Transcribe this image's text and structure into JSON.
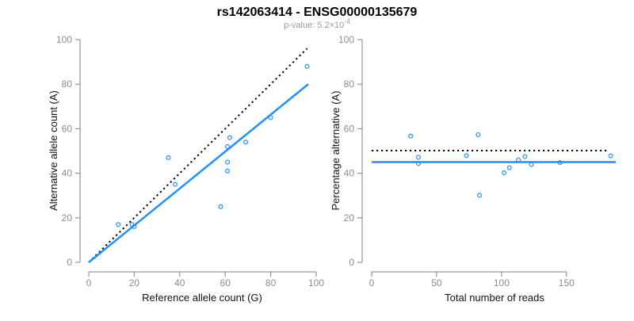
{
  "header": {
    "title": "rs142063414 - ENSG00000135679",
    "subtitle_prefix": "p-value: 5.2×10",
    "subtitle_exponent": "-4"
  },
  "colors": {
    "accent_blue": "#1E90FF",
    "line_black": "#000000",
    "axis_gray": "#7f7f7f",
    "tick_label_gray": "#8c8c8c",
    "axis_title_black": "#111111",
    "subtitle_gray": "#9a9a9a"
  },
  "chart_data": [
    {
      "type": "scatter",
      "title": "rs142063414 - ENSG00000135679",
      "subtitle": "p-value: 5.2×10^-4",
      "xlabel": "Reference allele count (G)",
      "ylabel": "Alternative allele count (A)",
      "xlim": [
        0,
        100
      ],
      "ylim": [
        0,
        100
      ],
      "xticks": [
        0,
        20,
        40,
        60,
        80,
        100
      ],
      "yticks": [
        0,
        20,
        40,
        60,
        80,
        100
      ],
      "grid": false,
      "marker": "open-circle",
      "marker_color": "#1E90FF",
      "points": [
        [
          13,
          17
        ],
        [
          19,
          17
        ],
        [
          20,
          16
        ],
        [
          35,
          47
        ],
        [
          38,
          35
        ],
        [
          58,
          25
        ],
        [
          61,
          41
        ],
        [
          61,
          45
        ],
        [
          61,
          52
        ],
        [
          62,
          56
        ],
        [
          69,
          54
        ],
        [
          80,
          65
        ],
        [
          96,
          88
        ]
      ],
      "lines": [
        {
          "name": "identity-line",
          "style": "dotted",
          "color": "#000000",
          "from": [
            0,
            0
          ],
          "to": [
            96,
            96
          ]
        },
        {
          "name": "fit-line",
          "style": "solid",
          "color": "#1E90FF",
          "from": [
            0,
            0
          ],
          "to": [
            96.5,
            80
          ]
        }
      ]
    },
    {
      "type": "scatter",
      "xlabel": "Total number of reads",
      "ylabel": "Percentage alternative (A)",
      "xlim": [
        0,
        190
      ],
      "ylim": [
        0,
        100
      ],
      "xticks": [
        0,
        50,
        100,
        150
      ],
      "yticks": [
        0,
        20,
        40,
        60,
        80,
        100
      ],
      "grid": false,
      "marker": "open-circle",
      "marker_color": "#1E90FF",
      "points": [
        [
          30,
          56.7
        ],
        [
          36,
          47.2
        ],
        [
          36,
          44.4
        ],
        [
          82,
          57.3
        ],
        [
          73,
          47.9
        ],
        [
          83,
          30.1
        ],
        [
          102,
          40.2
        ],
        [
          106,
          42.5
        ],
        [
          113,
          46.0
        ],
        [
          118,
          47.5
        ],
        [
          123,
          43.9
        ],
        [
          145,
          44.8
        ],
        [
          184,
          47.8
        ]
      ],
      "lines": [
        {
          "name": "null-50pct-line",
          "style": "dotted",
          "color": "#000000",
          "from": [
            0,
            50.2
          ],
          "to": [
            183,
            50.2
          ]
        },
        {
          "name": "mean-pct-line",
          "style": "solid",
          "color": "#1E90FF",
          "from": [
            0,
            45
          ],
          "to": [
            188,
            45
          ]
        }
      ]
    }
  ]
}
